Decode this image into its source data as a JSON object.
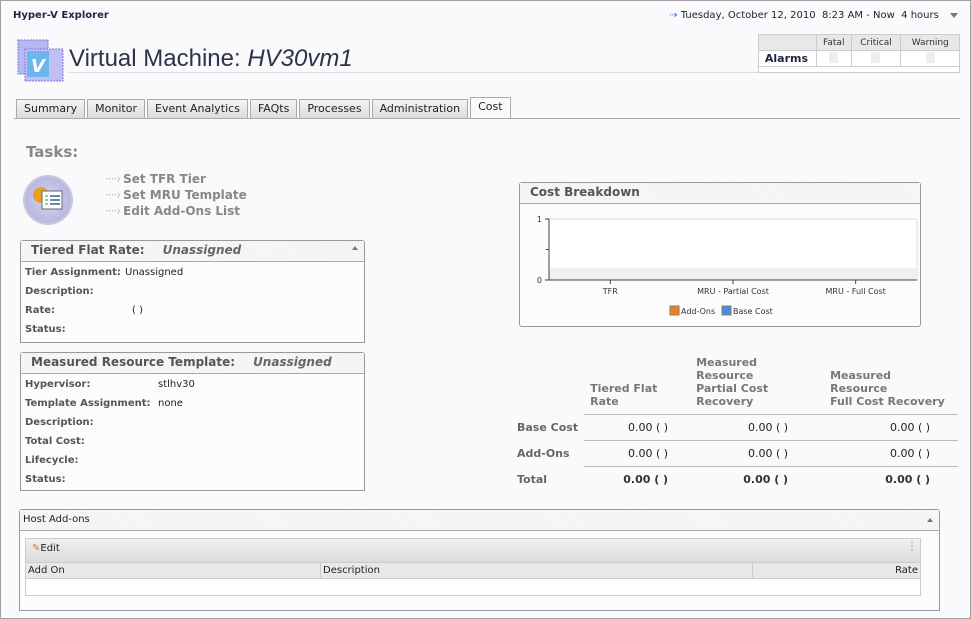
{
  "app": {
    "title": "Hyper-V Explorer"
  },
  "timerange": {
    "icon": "refresh-arrow-icon",
    "date": "Tuesday, October 12, 2010",
    "range": "8:23 AM - Now",
    "duration": "4 hours"
  },
  "page": {
    "title_prefix": "Virtual Machine:",
    "title_name": "HV30vm1",
    "icon": "virtual-machine-icon"
  },
  "alarms": {
    "label": "Alarms",
    "columns": [
      "Fatal",
      "Critical",
      "Warning"
    ]
  },
  "tabs": [
    {
      "label": "Summary"
    },
    {
      "label": "Monitor"
    },
    {
      "label": "Event Analytics"
    },
    {
      "label": "FAQts"
    },
    {
      "label": "Processes"
    },
    {
      "label": "Administration"
    },
    {
      "label": "Cost",
      "active": true
    }
  ],
  "tasks": {
    "heading": "Tasks:",
    "items": [
      "Set TFR Tier",
      "Set MRU Template",
      "Edit Add-Ons List"
    ]
  },
  "tfr": {
    "title": "Tiered Flat Rate:",
    "status": "Unassigned",
    "rows": [
      {
        "label": "Tier Assignment:",
        "value": "Unassigned"
      },
      {
        "label": "Description:",
        "value": ""
      },
      {
        "label": "Rate:",
        "value": "( )"
      },
      {
        "label": "Status:",
        "value": ""
      }
    ]
  },
  "mrt": {
    "title": "Measured Resource Template:",
    "status": "Unassigned",
    "rows": [
      {
        "label": "Hypervisor:",
        "value": "stlhv30"
      },
      {
        "label": "Template Assignment:",
        "value": "none"
      },
      {
        "label": "Description:",
        "value": ""
      },
      {
        "label": "Total Cost:",
        "value": ""
      },
      {
        "label": "Lifecycle:",
        "value": ""
      },
      {
        "label": "Status:",
        "value": ""
      }
    ]
  },
  "cost_breakdown": {
    "title": "Cost Breakdown"
  },
  "chart_data": {
    "type": "bar",
    "title": "Cost Breakdown",
    "categories": [
      "TFR",
      "MRU - Partial Cost",
      "MRU - Full Cost"
    ],
    "series": [
      {
        "name": "Add-Ons",
        "color": "#e8822a",
        "values": [
          0,
          0,
          0
        ]
      },
      {
        "name": "Base Cost",
        "color": "#3d8ee8",
        "values": [
          0,
          0,
          0
        ]
      }
    ],
    "ylim": [
      0,
      1
    ],
    "yticks": [
      "0",
      "1"
    ],
    "legend": "bottom"
  },
  "cost_table": {
    "columns": [
      "Tiered Flat Rate",
      "Measured Resource Partial Cost Recovery",
      "Measured Resource Full Cost Recovery"
    ],
    "col_lines": [
      [
        "Tiered Flat Rate",
        ""
      ],
      [
        "Measured Resource",
        "Partial Cost Recovery"
      ],
      [
        "Measured Resource",
        "Full Cost Recovery"
      ]
    ],
    "rows": [
      {
        "label": "Base Cost",
        "values": [
          "0.00 ( )",
          "0.00 ( )",
          "0.00 ( )"
        ]
      },
      {
        "label": "Add-Ons",
        "values": [
          "0.00 ( )",
          "0.00 ( )",
          "0.00 ( )"
        ]
      },
      {
        "label": "Total",
        "values": [
          "0.00 ( )",
          "0.00 ( )",
          "0.00 ( )"
        ]
      }
    ]
  },
  "host_addons": {
    "title": "Host Add-ons",
    "edit_label": "Edit",
    "columns": [
      "Add On",
      "Description",
      "Rate"
    ]
  }
}
